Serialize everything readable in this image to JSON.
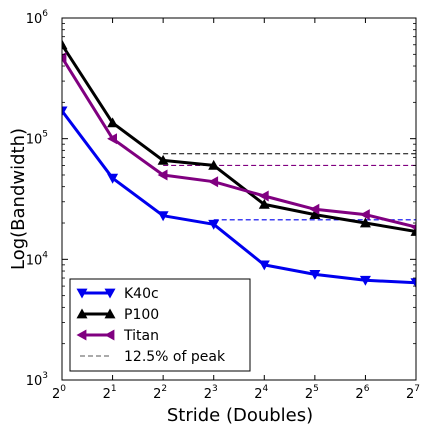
{
  "chart_data": {
    "type": "line",
    "title": "",
    "xlabel": "Stride (Doubles)",
    "ylabel": "Log(Bandwidth)",
    "y_scale": "log",
    "x_scale": "log2",
    "xlim": [
      1,
      128
    ],
    "ylim": [
      1000,
      1000000
    ],
    "grid": false,
    "legend_position": "lower-left",
    "x_ticks": [
      {
        "base": "2",
        "exp": "0",
        "value": 1
      },
      {
        "base": "2",
        "exp": "1",
        "value": 2
      },
      {
        "base": "2",
        "exp": "2",
        "value": 4
      },
      {
        "base": "2",
        "exp": "3",
        "value": 8
      },
      {
        "base": "2",
        "exp": "4",
        "value": 16
      },
      {
        "base": "2",
        "exp": "5",
        "value": 32
      },
      {
        "base": "2",
        "exp": "6",
        "value": 64
      },
      {
        "base": "2",
        "exp": "7",
        "value": 128
      }
    ],
    "y_ticks": [
      {
        "base": "10",
        "exp": "3",
        "value": 1000
      },
      {
        "base": "10",
        "exp": "4",
        "value": 10000
      },
      {
        "base": "10",
        "exp": "5",
        "value": 100000
      },
      {
        "base": "10",
        "exp": "6",
        "value": 1000000
      }
    ],
    "series": [
      {
        "name": "K40c",
        "color": "#0000ee",
        "marker": "triangle-down",
        "x": [
          1,
          2,
          4,
          8,
          16,
          32,
          64,
          128
        ],
        "y": [
          170000,
          47000,
          23000,
          19500,
          9000,
          7500,
          6700,
          6400
        ]
      },
      {
        "name": "P100",
        "color": "#000000",
        "marker": "triangle-up",
        "x": [
          1,
          2,
          4,
          8,
          16,
          32,
          64,
          128
        ],
        "y": [
          600000,
          135000,
          66000,
          60000,
          28500,
          23500,
          20000,
          17000
        ]
      },
      {
        "name": "Titan",
        "color": "#800080",
        "marker": "triangle-left",
        "x": [
          1,
          2,
          4,
          8,
          16,
          32,
          64,
          128
        ],
        "y": [
          470000,
          100000,
          50000,
          44000,
          33500,
          26000,
          23500,
          18500
        ]
      }
    ],
    "reference_lines": [
      {
        "series": "K40c",
        "color": "#0000ee",
        "y": 21250,
        "x_from": 8,
        "x_to": 128
      },
      {
        "series": "P100",
        "color": "#000000",
        "y": 75000,
        "x_from": 4,
        "x_to": 128
      },
      {
        "series": "Titan",
        "color": "#800080",
        "y": 60000,
        "x_from": 4,
        "x_to": 128
      }
    ],
    "legend": [
      {
        "label": "K40c",
        "color": "#0000ee",
        "marker": "triangle-down",
        "style": "solid"
      },
      {
        "label": "P100",
        "color": "#000000",
        "marker": "triangle-up",
        "style": "solid"
      },
      {
        "label": "Titan",
        "color": "#800080",
        "marker": "triangle-left",
        "style": "solid"
      },
      {
        "label": "12.5% of peak",
        "color": "#555555",
        "marker": "none",
        "style": "dashed"
      }
    ]
  }
}
